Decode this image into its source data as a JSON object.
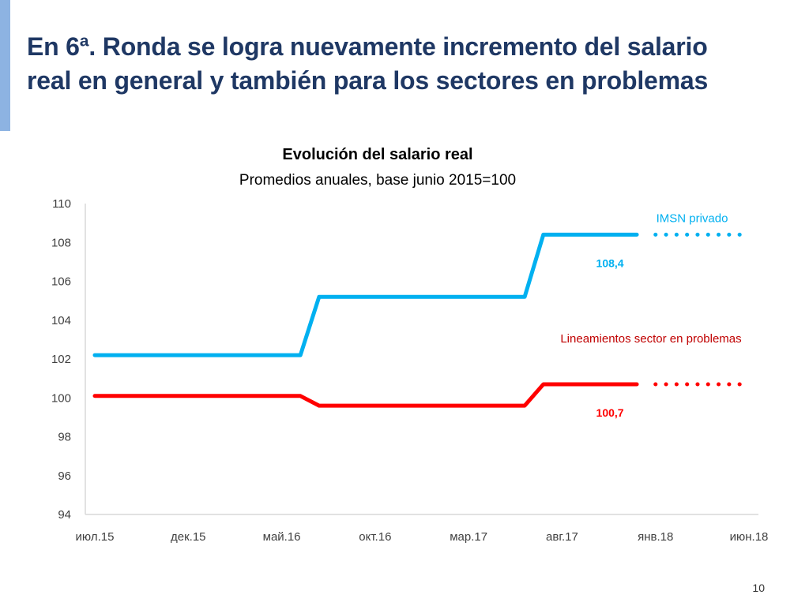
{
  "slide": {
    "title_line1": "En 6ª. Ronda se logra nuevamente incremento del salario",
    "title_line2": "real en general y también para los sectores en problemas",
    "page_number": "10"
  },
  "colors": {
    "title": "#1f3864",
    "accent_bar": "#8db3e2",
    "imsn": "#00b0f0",
    "lineamientos": "#ff0000",
    "lineamientos_label": "#c00000",
    "axis": "#d9d9d9",
    "tick_text": "#404040"
  },
  "chart_data": {
    "type": "line",
    "title": "Evolución del salario real",
    "subtitle": "Promedios anuales, base junio 2015=100",
    "xlabel": "",
    "ylabel": "",
    "ylim": [
      94,
      110
    ],
    "yticks": [
      94,
      96,
      98,
      100,
      102,
      104,
      106,
      108,
      110
    ],
    "xlim": [
      0,
      35
    ],
    "x_tick_labels": [
      "июл.15",
      "дек.15",
      "май.16",
      "окт.16",
      "мар.17",
      "авг.17",
      "янв.18",
      "июн.18"
    ],
    "x_tick_positions": [
      0,
      5,
      10,
      15,
      20,
      25,
      30,
      35
    ],
    "grid": false,
    "series": [
      {
        "name": "IMSN privado",
        "color_key": "imsn",
        "solid": [
          [
            0,
            102.2
          ],
          [
            11,
            102.2
          ],
          [
            12,
            105.2
          ],
          [
            23,
            105.2
          ],
          [
            24,
            108.4
          ],
          [
            29,
            108.4
          ]
        ],
        "dotted": [
          [
            30,
            108.4
          ],
          [
            35,
            108.4
          ]
        ],
        "end_value_label": "108,4"
      },
      {
        "name": "Lineamientos sector en problemas",
        "color_key": "lineamientos",
        "solid": [
          [
            0,
            100.1
          ],
          [
            11,
            100.1
          ],
          [
            12,
            99.6
          ],
          [
            23,
            99.6
          ],
          [
            24,
            100.7
          ],
          [
            29,
            100.7
          ]
        ],
        "dotted": [
          [
            30,
            100.7
          ],
          [
            35,
            100.7
          ]
        ],
        "end_value_label": "100,7"
      }
    ]
  }
}
